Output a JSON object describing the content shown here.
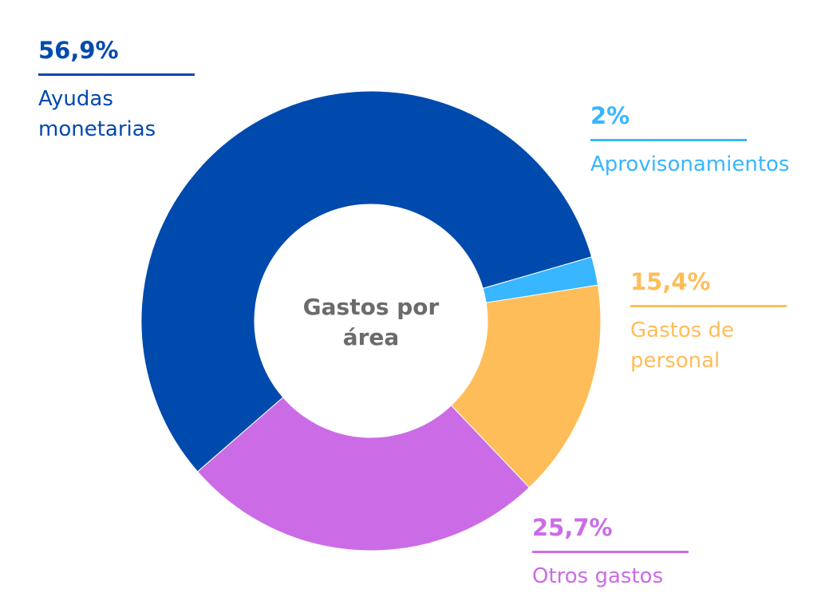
{
  "chart_data": {
    "type": "donut",
    "center_label": "Gastos por área",
    "slices": [
      {
        "label": "Ayudas monetarias",
        "value": 56.9,
        "value_label": "56,9%",
        "color": "#004aad"
      },
      {
        "label": "Aprovisonamientos",
        "value": 2.0,
        "value_label": "2%",
        "color": "#38b6ff"
      },
      {
        "label": "Gastos de personal",
        "value": 15.4,
        "value_label": "15,4%",
        "color": "#ffbd59"
      },
      {
        "label": "Otros gastos",
        "value": 25.7,
        "value_label": "25,7%",
        "color": "#cb6ce6"
      }
    ],
    "start_angle_deg": 229,
    "direction": "clockwise",
    "legend": "none"
  }
}
